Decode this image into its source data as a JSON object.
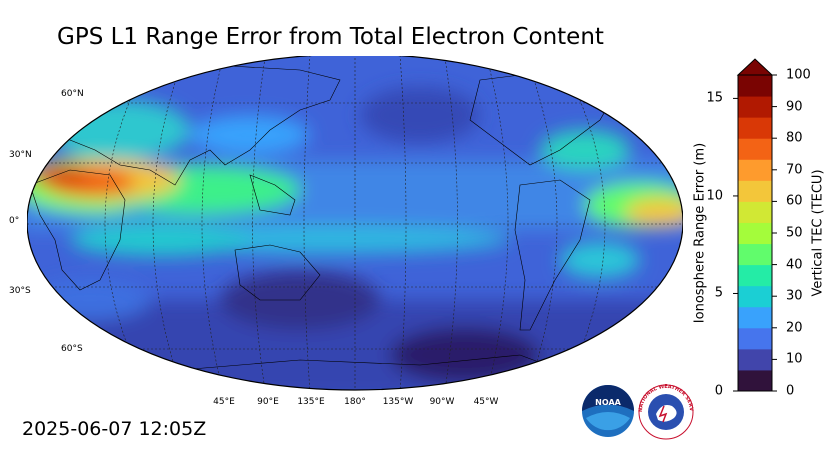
{
  "title": "GPS L1 Range Error from Total Electron Content",
  "timestamp": "2025-06-07 12:05Z",
  "map": {
    "lat_labels": [
      "60°N",
      "30°N",
      "0°",
      "30°S",
      "60°S"
    ],
    "lon_labels": [
      "45°E",
      "90°E",
      "135°E",
      "180°",
      "135°W",
      "90°W",
      "45°W"
    ]
  },
  "colorbar": {
    "right_label": "Vertical TEC (TECU)",
    "left_label": "Ionosphere Range Error (m)",
    "right_ticks": [
      "0",
      "10",
      "20",
      "30",
      "40",
      "50",
      "60",
      "70",
      "80",
      "90",
      "100"
    ],
    "left_ticks": [
      "0",
      "5",
      "10",
      "15"
    ],
    "colors": [
      "#30123b",
      "#4145ab",
      "#4675ed",
      "#39a2fc",
      "#1bcfd4",
      "#24eca6",
      "#61fc6c",
      "#a4fc3b",
      "#d1e834",
      "#f3c63a",
      "#fe9b2d",
      "#f36315",
      "#d93806",
      "#b11901",
      "#7a0402"
    ]
  },
  "logos": {
    "noaa_text": "NOAA",
    "nws_text": "NATIONAL WEATHER SERVICE"
  }
}
